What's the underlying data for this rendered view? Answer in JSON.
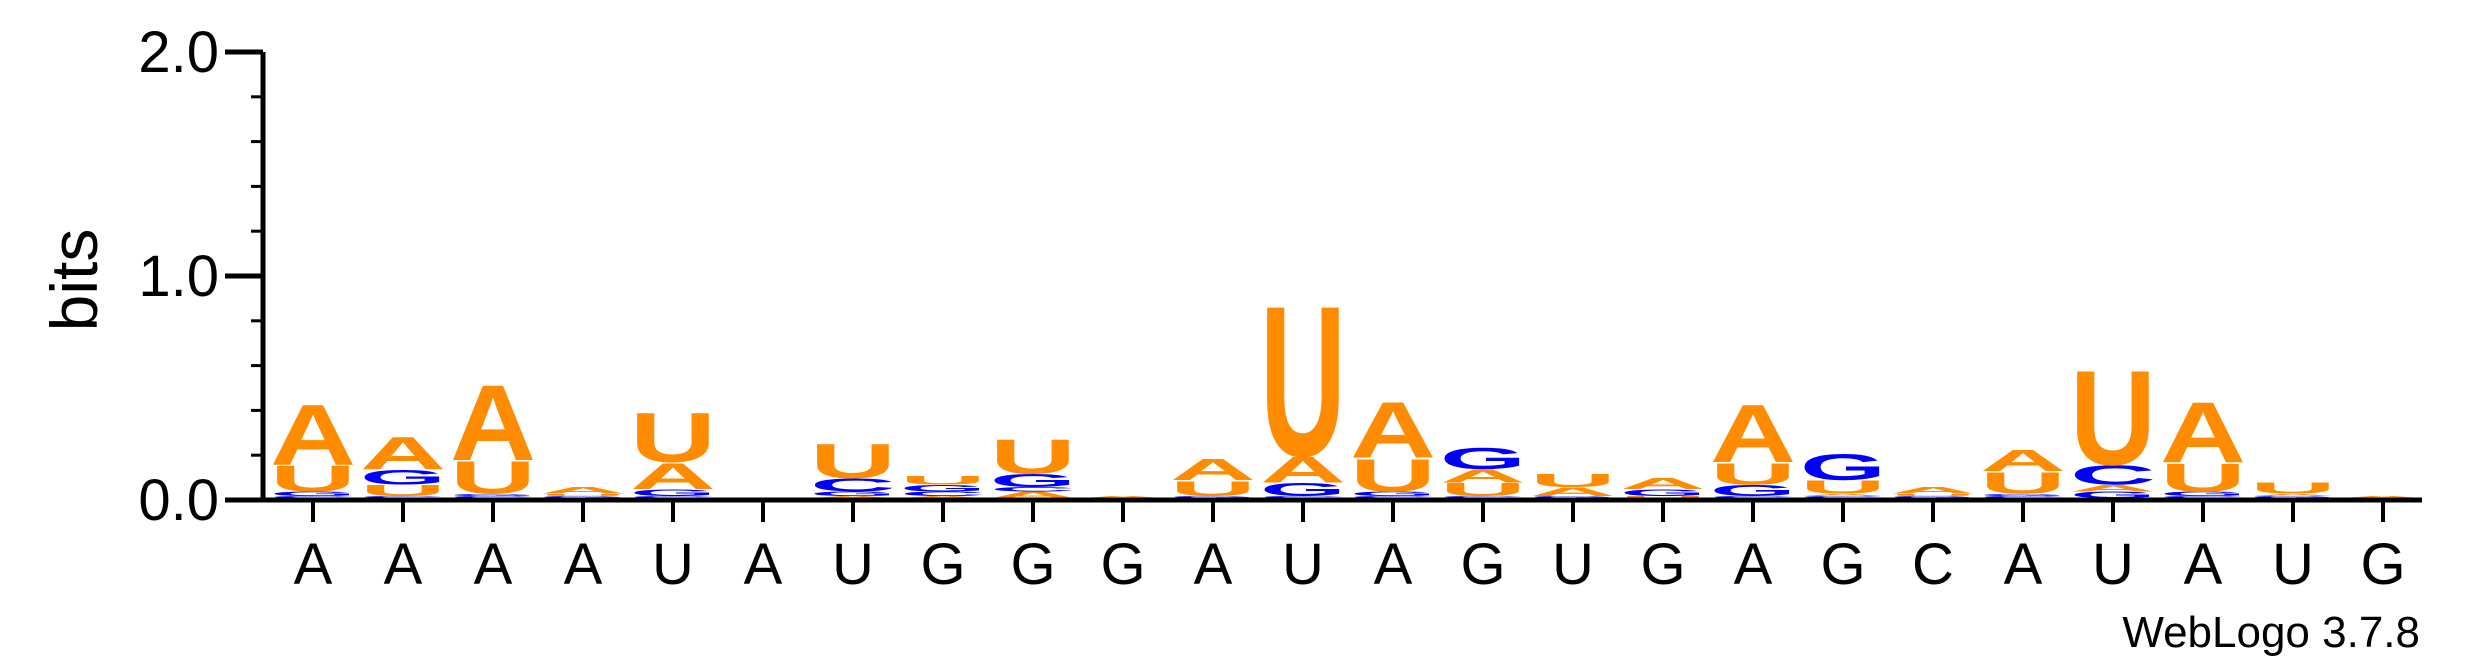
{
  "chart_data": {
    "type": "sequence-logo",
    "ylabel": "bits",
    "ylim": [
      0,
      2.0
    ],
    "yticks": [
      {
        "value": 0.0,
        "label": "0.0"
      },
      {
        "value": 1.0,
        "label": "1.0"
      },
      {
        "value": 2.0,
        "label": "2.0"
      }
    ],
    "yminor_step": 0.2,
    "positions": [
      "A",
      "A",
      "A",
      "A",
      "U",
      "A",
      "U",
      "G",
      "G",
      "G",
      "A",
      "U",
      "A",
      "G",
      "U",
      "G",
      "A",
      "G",
      "C",
      "A",
      "U",
      "A",
      "U",
      "G"
    ],
    "colors": {
      "A": "#FF8C00",
      "U": "#FF8C00",
      "G": "#0000FF",
      "C": "#0000FF"
    },
    "stacks": [
      [
        {
          "l": "C",
          "h": 0.01
        },
        {
          "l": "G",
          "h": 0.02
        },
        {
          "l": "U",
          "h": 0.12
        },
        {
          "l": "A",
          "h": 0.28
        }
      ],
      [
        {
          "l": "C",
          "h": 0.01
        },
        {
          "l": "U",
          "h": 0.05
        },
        {
          "l": "G",
          "h": 0.07
        },
        {
          "l": "A",
          "h": 0.15
        }
      ],
      [
        {
          "l": "C",
          "h": 0.01
        },
        {
          "l": "G",
          "h": 0.01
        },
        {
          "l": "U",
          "h": 0.15
        },
        {
          "l": "A",
          "h": 0.35
        }
      ],
      [
        {
          "l": "G",
          "h": 0.01
        },
        {
          "l": "U",
          "h": 0.01
        },
        {
          "l": "A",
          "h": 0.03
        }
      ],
      [
        {
          "l": "C",
          "h": 0.01
        },
        {
          "l": "G",
          "h": 0.03
        },
        {
          "l": "A",
          "h": 0.12
        },
        {
          "l": "U",
          "h": 0.23
        }
      ],
      [],
      [
        {
          "l": "A",
          "h": 0.01
        },
        {
          "l": "G",
          "h": 0.02
        },
        {
          "l": "C",
          "h": 0.06
        },
        {
          "l": "U",
          "h": 0.16
        }
      ],
      [
        {
          "l": "A",
          "h": 0.01
        },
        {
          "l": "C",
          "h": 0.02
        },
        {
          "l": "G",
          "h": 0.03
        },
        {
          "l": "U",
          "h": 0.04
        }
      ],
      [
        {
          "l": "A",
          "h": 0.03
        },
        {
          "l": "C",
          "h": 0.02
        },
        {
          "l": "G",
          "h": 0.06
        },
        {
          "l": "U",
          "h": 0.16
        }
      ],
      [
        {
          "l": "A",
          "h": 0.01
        }
      ],
      [
        {
          "l": "G",
          "h": 0.01
        },
        {
          "l": "U",
          "h": 0.07
        },
        {
          "l": "A",
          "h": 0.1
        }
      ],
      [
        {
          "l": "C",
          "h": 0.01
        },
        {
          "l": "G",
          "h": 0.06
        },
        {
          "l": "A",
          "h": 0.12
        },
        {
          "l": "U",
          "h": 0.7
        }
      ],
      [
        {
          "l": "C",
          "h": 0.01
        },
        {
          "l": "G",
          "h": 0.02
        },
        {
          "l": "U",
          "h": 0.15
        },
        {
          "l": "A",
          "h": 0.26
        }
      ],
      [
        {
          "l": "C",
          "h": 0.01
        },
        {
          "l": "U",
          "h": 0.06
        },
        {
          "l": "A",
          "h": 0.06
        },
        {
          "l": "G",
          "h": 0.1
        }
      ],
      [
        {
          "l": "G",
          "h": 0.01
        },
        {
          "l": "A",
          "h": 0.04
        },
        {
          "l": "U",
          "h": 0.06
        }
      ],
      [
        {
          "l": "U",
          "h": 0.01
        },
        {
          "l": "G",
          "h": 0.03
        },
        {
          "l": "A",
          "h": 0.05
        }
      ],
      [
        {
          "l": "C",
          "h": 0.01
        },
        {
          "l": "G",
          "h": 0.05
        },
        {
          "l": "U",
          "h": 0.1
        },
        {
          "l": "A",
          "h": 0.27
        }
      ],
      [
        {
          "l": "C",
          "h": 0.01
        },
        {
          "l": "A",
          "h": 0.01
        },
        {
          "l": "U",
          "h": 0.06
        },
        {
          "l": "G",
          "h": 0.12
        }
      ],
      [
        {
          "l": "G",
          "h": 0.01
        },
        {
          "l": "U",
          "h": 0.01
        },
        {
          "l": "A",
          "h": 0.03
        }
      ],
      [
        {
          "l": "C",
          "h": 0.01
        },
        {
          "l": "G",
          "h": 0.01
        },
        {
          "l": "U",
          "h": 0.1
        },
        {
          "l": "A",
          "h": 0.1
        }
      ],
      [
        {
          "l": "G",
          "h": 0.03
        },
        {
          "l": "A",
          "h": 0.03
        },
        {
          "l": "C",
          "h": 0.09
        },
        {
          "l": "U",
          "h": 0.44
        }
      ],
      [
        {
          "l": "C",
          "h": 0.01
        },
        {
          "l": "G",
          "h": 0.02
        },
        {
          "l": "U",
          "h": 0.13
        },
        {
          "l": "A",
          "h": 0.28
        }
      ],
      [
        {
          "l": "G",
          "h": 0.01
        },
        {
          "l": "A",
          "h": 0.01
        },
        {
          "l": "U",
          "h": 0.05
        }
      ],
      [
        {
          "l": "A",
          "h": 0.01
        }
      ]
    ],
    "credit": "WebLogo 3.7.8"
  }
}
